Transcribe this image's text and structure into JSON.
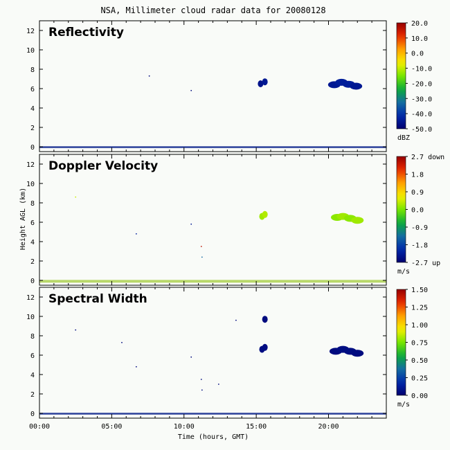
{
  "title": "NSA, Millimeter cloud radar data for 20080128",
  "xlabel": "Time (hours, GMT)",
  "ylabel": "Height AGL (km)",
  "x_ticks": [
    "00:00",
    "05:00",
    "10:00",
    "15:00",
    "20:00"
  ],
  "colors": {
    "background": "#f9fbf8",
    "axis": "#000000"
  },
  "chart_data": [
    {
      "type": "heatmap",
      "panel_title": "Reflectivity",
      "x_unit": "hours GMT",
      "xlim": [
        0,
        24
      ],
      "ylim": [
        -0.5,
        13
      ],
      "y_ticks": [
        "0",
        "2",
        "4",
        "6",
        "8",
        "10",
        "12"
      ],
      "colorbar": {
        "labels": [
          "20.0",
          "10.0",
          "0.0",
          "-10.0",
          "-20.0",
          "-30.0",
          "-40.0",
          "-50.0"
        ],
        "unit": "dBZ",
        "range": [
          -50,
          20
        ]
      },
      "echoes": [
        {
          "x": 7.6,
          "y": 7.3,
          "value": -48
        },
        {
          "x": 10.5,
          "y": 5.8,
          "value": -48
        },
        {
          "x": 15.3,
          "y": 6.5,
          "value": -46
        },
        {
          "x": 15.6,
          "y": 6.7,
          "value": -45
        },
        {
          "x": 20.4,
          "y": 6.4,
          "value": -45
        },
        {
          "x": 20.9,
          "y": 6.65,
          "value": -44
        },
        {
          "x": 21.4,
          "y": 6.45,
          "value": -44
        },
        {
          "x": 21.9,
          "y": 6.25,
          "value": -45
        }
      ]
    },
    {
      "type": "heatmap",
      "panel_title": "Doppler Velocity",
      "x_unit": "hours GMT",
      "xlim": [
        0,
        24
      ],
      "ylim": [
        -0.5,
        13
      ],
      "y_ticks": [
        "0",
        "2",
        "4",
        "6",
        "8",
        "10",
        "12"
      ],
      "colorbar": {
        "labels": [
          "2.7 down",
          "1.8",
          "0.9",
          "0.0",
          "-0.9",
          "-1.8",
          "-2.7 up"
        ],
        "unit": "m/s",
        "range": [
          -2.7,
          2.7
        ]
      },
      "echoes": [
        {
          "x": 2.5,
          "y": 8.6,
          "value": 0.4
        },
        {
          "x": 6.7,
          "y": 4.8,
          "value": -2.2
        },
        {
          "x": 10.5,
          "y": 5.8,
          "value": -2.3
        },
        {
          "x": 11.2,
          "y": 3.5,
          "value": 2.4
        },
        {
          "x": 11.25,
          "y": 2.4,
          "value": -1.4
        },
        {
          "x": 15.4,
          "y": 6.6,
          "value": 0.2
        },
        {
          "x": 15.6,
          "y": 6.8,
          "value": 0.3
        },
        {
          "x": 20.6,
          "y": 6.5,
          "value": 0.1
        },
        {
          "x": 21.0,
          "y": 6.6,
          "value": 0.2
        },
        {
          "x": 21.5,
          "y": 6.4,
          "value": 0.1
        },
        {
          "x": 22.0,
          "y": 6.2,
          "value": 0.2
        }
      ]
    },
    {
      "type": "heatmap",
      "panel_title": "Spectral Width",
      "x_unit": "hours GMT",
      "xlim": [
        0,
        24
      ],
      "ylim": [
        -0.5,
        13
      ],
      "y_ticks": [
        "0",
        "2",
        "4",
        "6",
        "8",
        "10",
        "12"
      ],
      "colorbar": {
        "labels": [
          "1.50",
          "1.25",
          "1.00",
          "0.75",
          "0.50",
          "0.25",
          "0.00"
        ],
        "unit": "m/s",
        "range": [
          0,
          1.5
        ]
      },
      "echoes": [
        {
          "x": 2.5,
          "y": 8.6,
          "value": 0.05
        },
        {
          "x": 5.7,
          "y": 7.3,
          "value": 0.05
        },
        {
          "x": 6.7,
          "y": 4.8,
          "value": 0.05
        },
        {
          "x": 10.5,
          "y": 5.8,
          "value": 0.05
        },
        {
          "x": 11.2,
          "y": 3.5,
          "value": 0.05
        },
        {
          "x": 11.25,
          "y": 2.4,
          "value": 0.05
        },
        {
          "x": 12.4,
          "y": 3.0,
          "value": 0.05
        },
        {
          "x": 13.6,
          "y": 9.6,
          "value": 0.05
        },
        {
          "x": 15.6,
          "y": 9.7,
          "value": 0.05
        },
        {
          "x": 15.4,
          "y": 6.6,
          "value": 0.06
        },
        {
          "x": 15.6,
          "y": 6.8,
          "value": 0.06
        },
        {
          "x": 20.5,
          "y": 6.4,
          "value": 0.05
        },
        {
          "x": 21.0,
          "y": 6.6,
          "value": 0.06
        },
        {
          "x": 21.5,
          "y": 6.4,
          "value": 0.06
        },
        {
          "x": 22.0,
          "y": 6.2,
          "value": 0.05
        }
      ]
    }
  ]
}
